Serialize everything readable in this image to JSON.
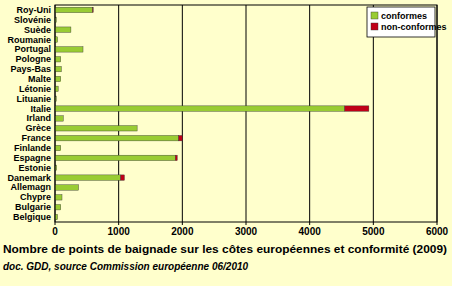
{
  "chart_data": {
    "type": "bar",
    "orientation": "horizontal",
    "stacked": true,
    "title": "Nombre de points de baignade sur les côtes européennes et conformité (2009)",
    "subtitle": "doc. GDD, source Commission européenne 06/2010",
    "categories": [
      "Roy-Uni",
      "Slovénie",
      "Suède",
      "Roumanie",
      "Portugal",
      "Pologne",
      "Pays-Bas",
      "Malte",
      "Létonie",
      "Lituanie",
      "Italie",
      "Irland",
      "Grèce",
      "France",
      "Finlande",
      "Espagne",
      "Estonie",
      "Danemark",
      "Allemagn",
      "Chypre",
      "Bulgarie",
      "Belgique"
    ],
    "series": [
      {
        "name": "conformes",
        "color": "#99cc33",
        "values": [
          590,
          20,
          250,
          40,
          440,
          90,
          100,
          90,
          50,
          20,
          4550,
          130,
          1290,
          1940,
          90,
          1890,
          25,
          1030,
          370,
          110,
          90,
          40
        ]
      },
      {
        "name": "non-conformes",
        "color": "#c00018",
        "values": [
          10,
          0,
          0,
          0,
          0,
          0,
          0,
          0,
          0,
          0,
          380,
          0,
          0,
          60,
          0,
          30,
          0,
          60,
          0,
          0,
          0,
          0
        ]
      }
    ],
    "xlim": [
      0,
      6000
    ],
    "xticks": [
      0,
      1000,
      2000,
      3000,
      4000,
      5000,
      6000
    ],
    "grid": true,
    "legend": "top-right"
  }
}
